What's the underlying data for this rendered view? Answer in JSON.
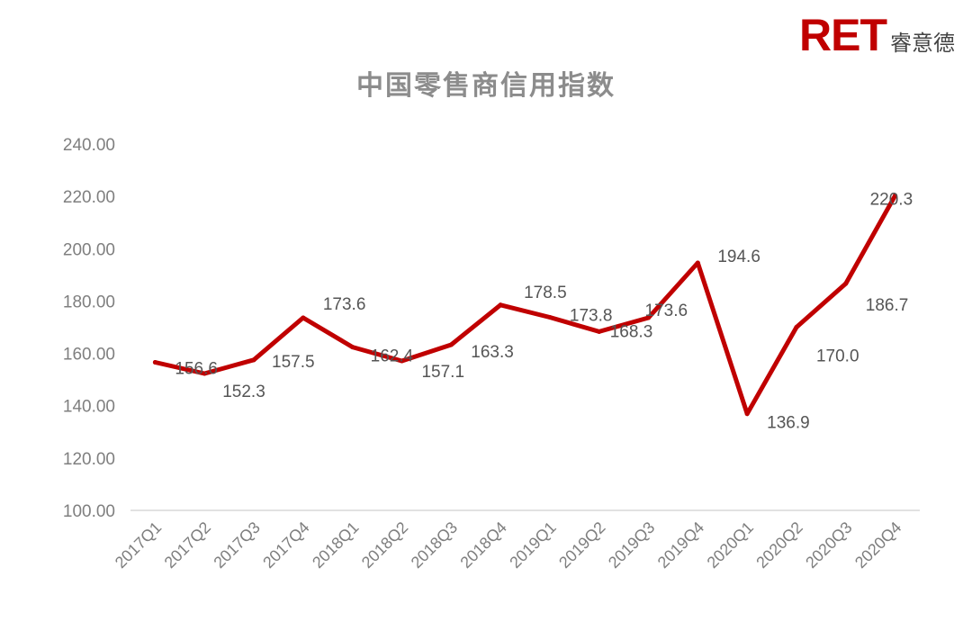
{
  "logo": {
    "mark": "RET",
    "text": "睿意德",
    "color": "#c00000"
  },
  "chart_data": {
    "type": "line",
    "title": "中国零售商信用指数",
    "xlabel": "",
    "ylabel": "",
    "categories": [
      "2017Q1",
      "2017Q2",
      "2017Q3",
      "2017Q4",
      "2018Q1",
      "2018Q2",
      "2018Q3",
      "2018Q4",
      "2019Q1",
      "2019Q2",
      "2019Q3",
      "2019Q4",
      "2020Q1",
      "2020Q2",
      "2020Q3",
      "2020Q4"
    ],
    "values": [
      156.6,
      152.3,
      157.5,
      173.6,
      162.4,
      157.1,
      163.3,
      178.5,
      173.8,
      168.3,
      173.6,
      194.6,
      136.9,
      170.0,
      186.7,
      220.3
    ],
    "data_labels": [
      "156.6",
      "152.3",
      "157.5",
      "173.6",
      "162.4",
      "157.1",
      "163.3",
      "178.5",
      "173.8",
      "168.3",
      "173.6",
      "194.6",
      "136.9",
      "170.0",
      "186.7",
      "220.3"
    ],
    "ylim": [
      100,
      240
    ],
    "yticks": [
      "100.00",
      "120.00",
      "140.00",
      "160.00",
      "180.00",
      "200.00",
      "220.00",
      "240.00"
    ],
    "grid": false,
    "line_color": "#c00000"
  }
}
